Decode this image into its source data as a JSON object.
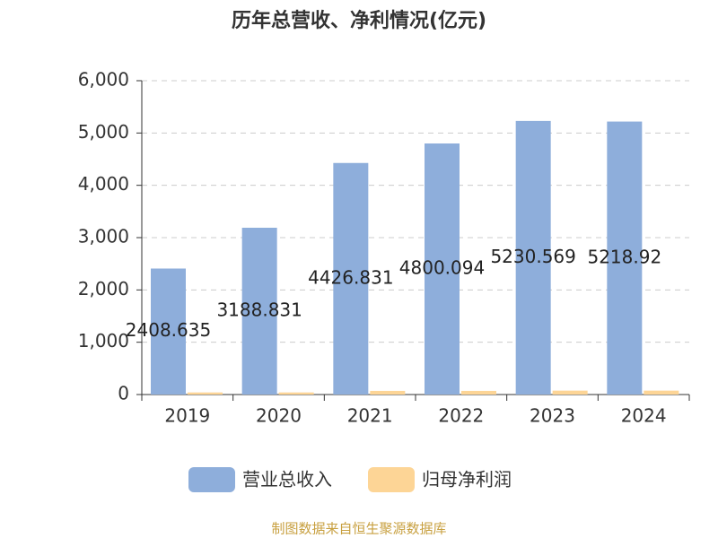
{
  "chart_data": {
    "type": "bar",
    "title": "历年总营收、净利情况(亿元)",
    "categories": [
      "2019",
      "2020",
      "2021",
      "2022",
      "2023",
      "2024"
    ],
    "series": [
      {
        "name": "营业总收入",
        "color": "#8eaedb",
        "values": [
          2408.635,
          3188.831,
          4426.831,
          4800.094,
          5230.569,
          5218.92
        ],
        "show_labels": true
      },
      {
        "name": "归母净利润",
        "color": "#fdd596",
        "values": [
          40,
          40,
          70,
          70,
          75,
          75
        ],
        "show_labels": false
      }
    ],
    "ylim": [
      0,
      6000
    ],
    "yticks": [
      0,
      {
        "value": 1000,
        "label": "1,000"
      },
      {
        "value": 2000,
        "label": "2,000"
      },
      {
        "value": 3000,
        "label": "3,000"
      },
      {
        "value": 4000,
        "label": "4,000"
      },
      {
        "value": 5000,
        "label": "5,000"
      },
      {
        "value": 6000,
        "label": "6,000"
      }
    ],
    "grid": true,
    "legend": "bottom",
    "source": "制图数据来自恒生聚源数据库"
  }
}
